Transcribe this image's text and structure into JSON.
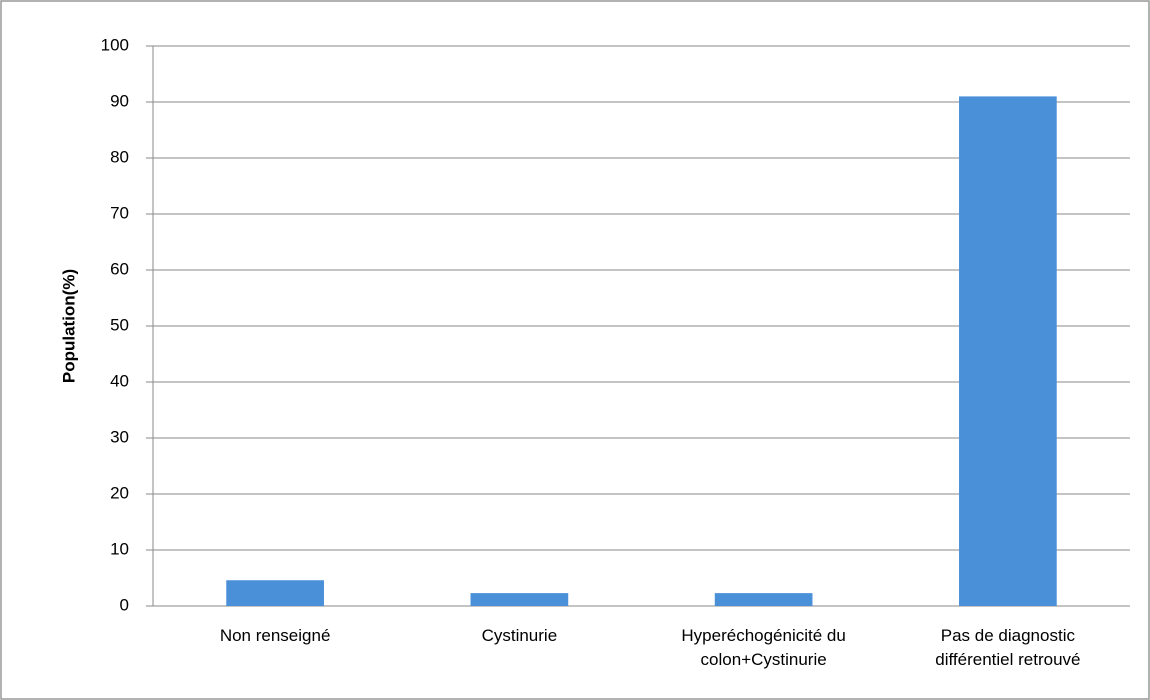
{
  "chart_data": {
    "type": "bar",
    "ylabel": "Population(%)",
    "categories": [
      "Non renseigné",
      "Cystinurie",
      "Hyperéchogénicité du colon+Cystinurie",
      "Pas de diagnostic différentiel retrouvé"
    ],
    "values": [
      4.6,
      2.3,
      2.3,
      91
    ],
    "color": "#4a90d9",
    "ylim": [
      0,
      100
    ],
    "yticks": [
      0,
      10,
      20,
      30,
      40,
      50,
      60,
      70,
      80,
      90,
      100
    ],
    "grid": true
  }
}
